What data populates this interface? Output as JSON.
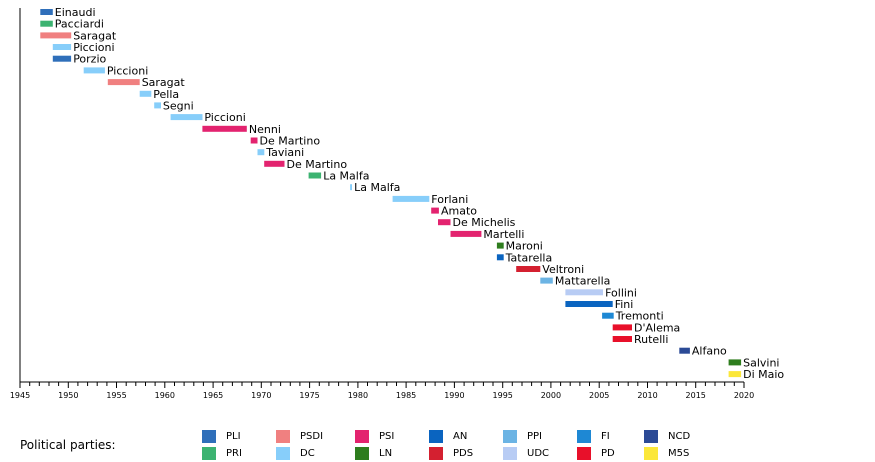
{
  "chart_data": {
    "type": "timeline",
    "xlim": [
      1945,
      2020
    ],
    "x_ticks": [
      1945,
      1950,
      1955,
      1960,
      1965,
      1970,
      1975,
      1980,
      1985,
      1990,
      1995,
      2000,
      2005,
      2010,
      2015,
      2020
    ],
    "rows": [
      {
        "label": "Einaudi",
        "start": 1947.1,
        "end": 1948.4,
        "party": "PLI"
      },
      {
        "label": "Pacciardi",
        "start": 1947.1,
        "end": 1948.4,
        "party": "PRI"
      },
      {
        "label": "Saragat",
        "start": 1947.1,
        "end": 1950.3,
        "party": "PSDI"
      },
      {
        "label": "Piccioni",
        "start": 1948.4,
        "end": 1950.3,
        "party": "DC"
      },
      {
        "label": "Porzio",
        "start": 1948.4,
        "end": 1950.3,
        "party": "PLI"
      },
      {
        "label": "Piccioni",
        "start": 1951.6,
        "end": 1953.8,
        "party": "DC"
      },
      {
        "label": "Saragat",
        "start": 1954.1,
        "end": 1957.4,
        "party": "PSDI"
      },
      {
        "label": "Pella",
        "start": 1957.4,
        "end": 1958.6,
        "party": "DC"
      },
      {
        "label": "Segni",
        "start": 1958.9,
        "end": 1959.6,
        "party": "DC"
      },
      {
        "label": "Piccioni",
        "start": 1960.6,
        "end": 1963.9,
        "party": "DC"
      },
      {
        "label": "Nenni",
        "start": 1963.9,
        "end": 1968.5,
        "party": "PSI"
      },
      {
        "label": "De Martino",
        "start": 1968.9,
        "end": 1969.6,
        "party": "PSI"
      },
      {
        "label": "Taviani",
        "start": 1969.6,
        "end": 1970.3,
        "party": "DC"
      },
      {
        "label": "De Martino",
        "start": 1970.3,
        "end": 1972.4,
        "party": "PSI"
      },
      {
        "label": "La Malfa",
        "start": 1974.9,
        "end": 1976.2,
        "party": "PRI"
      },
      {
        "label": "La Malfa",
        "start": 1979.2,
        "end": 1979.4,
        "party": "DC"
      },
      {
        "label": "Forlani",
        "start": 1983.6,
        "end": 1987.4,
        "party": "DC"
      },
      {
        "label": "Amato",
        "start": 1987.6,
        "end": 1988.4,
        "party": "PSI"
      },
      {
        "label": "De Michelis",
        "start": 1988.3,
        "end": 1989.6,
        "party": "PSI"
      },
      {
        "label": "Martelli",
        "start": 1989.6,
        "end": 1992.8,
        "party": "PSI"
      },
      {
        "label": "Maroni",
        "start": 1994.4,
        "end": 1995.1,
        "party": "LN"
      },
      {
        "label": "Tatarella",
        "start": 1994.4,
        "end": 1995.1,
        "party": "AN"
      },
      {
        "label": "Veltroni",
        "start": 1996.4,
        "end": 1998.9,
        "party": "PDS"
      },
      {
        "label": "Mattarella",
        "start": 1998.9,
        "end": 2000.2,
        "party": "PPI"
      },
      {
        "label": "Follini",
        "start": 2001.5,
        "end": 2005.4,
        "party": "UDC"
      },
      {
        "label": "Fini",
        "start": 2001.5,
        "end": 2006.4,
        "party": "AN"
      },
      {
        "label": "Tremonti",
        "start": 2005.3,
        "end": 2006.5,
        "party": "FI"
      },
      {
        "label": "D'Alema",
        "start": 2006.4,
        "end": 2008.4,
        "party": "PD"
      },
      {
        "label": "Rutelli",
        "start": 2006.4,
        "end": 2008.4,
        "party": "PD"
      },
      {
        "label": "Alfano",
        "start": 2013.3,
        "end": 2014.4,
        "party": "NCD"
      },
      {
        "label": "Salvini",
        "start": 2018.4,
        "end": 2019.7,
        "party": "LN"
      },
      {
        "label": "Di Maio",
        "start": 2018.4,
        "end": 2019.7,
        "party": "M5S"
      }
    ],
    "legend": {
      "title": "Political parties:",
      "placement": "bottom",
      "entries": [
        {
          "name": "PLI",
          "color": "#2f6fba"
        },
        {
          "name": "PRI",
          "color": "#3cb371"
        },
        {
          "name": "PSDI",
          "color": "#f08080"
        },
        {
          "name": "DC",
          "color": "#87cefa"
        },
        {
          "name": "PSI",
          "color": "#e3236f"
        },
        {
          "name": "LN",
          "color": "#2e7d1e"
        },
        {
          "name": "AN",
          "color": "#0a64c0"
        },
        {
          "name": "PDS",
          "color": "#d42030"
        },
        {
          "name": "PPI",
          "color": "#6cb4e4"
        },
        {
          "name": "UDC",
          "color": "#b8ccf4"
        },
        {
          "name": "FI",
          "color": "#1e88d4"
        },
        {
          "name": "PD",
          "color": "#e8102a"
        },
        {
          "name": "NCD",
          "color": "#2b4a96"
        },
        {
          "name": "M5S",
          "color": "#fbe73a"
        }
      ]
    }
  }
}
